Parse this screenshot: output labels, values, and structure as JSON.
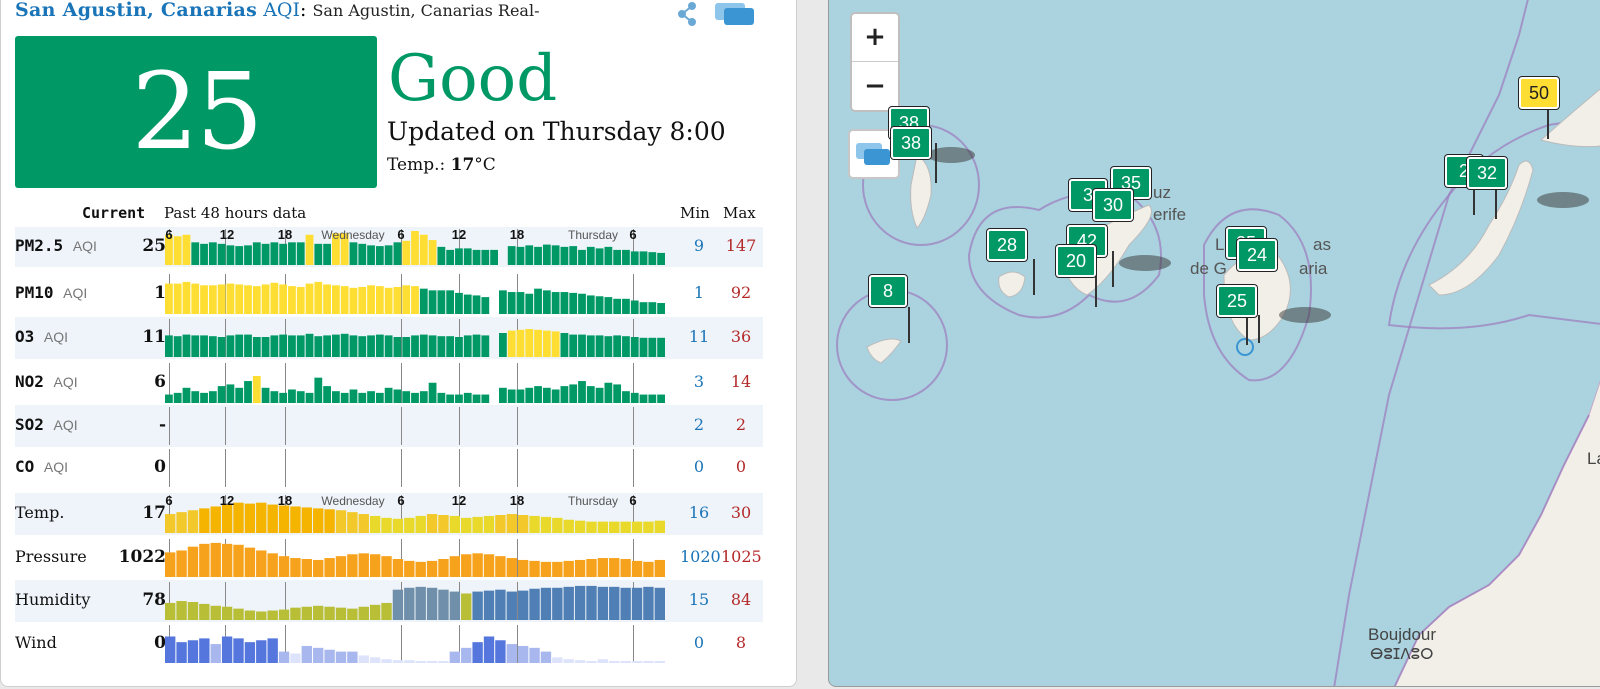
{
  "header": {
    "city": "San Agustin, Canarias",
    "aqi_word": "AQI",
    "colon": ":",
    "subtitle": "San Agustin, Canarias Real-"
  },
  "aqi": {
    "value": "25",
    "level": "Good",
    "updated": "Updated on Thursday 8:00",
    "temp_label": "Temp.:",
    "temp_value": "17",
    "temp_unit": "°C",
    "color": "#009966"
  },
  "table": {
    "current_header": "Current",
    "past_header": "Past 48 hours data",
    "min_header": "Min",
    "max_header": "Max",
    "time_labels": [
      "6",
      "12",
      "18",
      "Wednesday",
      "6",
      "12",
      "18",
      "Thursday",
      "6"
    ],
    "rows": [
      {
        "key": "pm25",
        "label": "PM2.5",
        "unit": "AQI",
        "current": "25",
        "min": "9",
        "max": "147",
        "type": "pollutant",
        "bars": [
          40,
          38,
          40,
          30,
          28,
          30,
          28,
          26,
          25,
          26,
          30,
          28,
          30,
          28,
          30,
          30,
          40,
          28,
          28,
          42,
          42,
          30,
          28,
          26,
          25,
          26,
          30,
          32,
          45,
          40,
          33,
          24,
          20,
          22,
          22,
          20,
          20,
          20,
          null,
          25,
          24,
          26,
          24,
          27,
          26,
          24,
          25,
          20,
          24,
          22,
          24,
          20,
          20,
          18,
          18,
          17,
          16
        ]
      },
      {
        "key": "pm10",
        "label": "PM10",
        "unit": "AQI",
        "current": "1",
        "min": "1",
        "max": "92",
        "type": "pollutant",
        "bars": [
          36,
          36,
          38,
          36,
          34,
          34,
          35,
          36,
          35,
          34,
          33,
          35,
          37,
          35,
          33,
          32,
          36,
          38,
          35,
          34,
          33,
          31,
          32,
          34,
          33,
          31,
          32,
          34,
          33,
          30,
          28,
          28,
          28,
          25,
          23,
          22,
          20,
          null,
          28,
          26,
          26,
          24,
          30,
          28,
          26,
          26,
          25,
          24,
          22,
          21,
          20,
          18,
          18,
          16,
          14,
          14,
          13
        ]
      },
      {
        "key": "o3",
        "label": "O3",
        "unit": "AQI",
        "current": "11",
        "min": "11",
        "max": "36",
        "type": "pollutant",
        "bars": [
          27,
          26,
          28,
          27,
          27,
          26,
          25,
          27,
          28,
          28,
          25,
          25,
          27,
          28,
          27,
          27,
          29,
          26,
          27,
          28,
          29,
          27,
          26,
          27,
          28,
          27,
          25,
          25,
          27,
          28,
          27,
          26,
          26,
          25,
          27,
          28,
          27,
          null,
          30,
          33,
          34,
          35,
          34,
          33,
          32,
          30,
          28,
          28,
          27,
          27,
          26,
          27,
          26,
          25,
          24,
          24,
          24
        ]
      },
      {
        "key": "no2",
        "label": "NO2",
        "unit": "AQI",
        "current": "6",
        "min": "3",
        "max": "14",
        "type": "pollutant",
        "bars": [
          10,
          12,
          18,
          14,
          12,
          14,
          20,
          22,
          18,
          26,
          32,
          18,
          14,
          12,
          16,
          14,
          12,
          30,
          20,
          14,
          12,
          16,
          12,
          14,
          12,
          18,
          16,
          14,
          12,
          14,
          24,
          12,
          10,
          10,
          12,
          10,
          10,
          null,
          18,
          16,
          16,
          18,
          20,
          18,
          16,
          20,
          22,
          26,
          20,
          18,
          24,
          22,
          14,
          12,
          10,
          10,
          10
        ]
      },
      {
        "key": "so2",
        "label": "SO2",
        "unit": "AQI",
        "current": "-",
        "min": "2",
        "max": "2",
        "type": "pollutant",
        "bars": []
      },
      {
        "key": "co",
        "label": "CO",
        "unit": "AQI",
        "current": "0",
        "min": "0",
        "max": "0",
        "type": "pollutant",
        "bars": []
      },
      {
        "key": "temp",
        "label": "Temp.",
        "unit": "",
        "current": "17",
        "min": "16",
        "max": "30",
        "type": "weather",
        "bars": [
          20,
          22,
          24,
          26,
          28,
          30,
          32,
          31,
          32,
          30,
          29,
          28,
          27,
          26,
          25,
          24,
          22,
          20,
          18,
          16,
          15,
          16,
          18,
          20,
          19,
          18,
          16,
          17,
          18,
          19,
          20,
          19,
          18,
          17,
          16,
          14,
          13,
          12,
          12,
          12,
          12,
          12,
          12,
          13
        ]
      },
      {
        "key": "pressure",
        "label": "Pressure",
        "unit": "",
        "current": "1022",
        "min": "1020",
        "max": "1025",
        "type": "weather",
        "bars": [
          26,
          28,
          32,
          35,
          36,
          35,
          34,
          31,
          28,
          25,
          22,
          20,
          19,
          18,
          20,
          22,
          24,
          25,
          24,
          22,
          19,
          17,
          16,
          17,
          19,
          22,
          24,
          25,
          24,
          22,
          20,
          18,
          17,
          16,
          16,
          17,
          18,
          19,
          20,
          20,
          19,
          17,
          16,
          18
        ]
      },
      {
        "key": "humidity",
        "label": "Humidity",
        "unit": "",
        "current": "78",
        "min": "15",
        "max": "84",
        "type": "weather",
        "bars": [
          18,
          20,
          19,
          17,
          15,
          14,
          12,
          10,
          9,
          10,
          11,
          13,
          14,
          15,
          14,
          13,
          12,
          14,
          16,
          18,
          32,
          34,
          35,
          34,
          32,
          30,
          28,
          30,
          31,
          32,
          30,
          31,
          33,
          34,
          34,
          35,
          36,
          36,
          35,
          35,
          34,
          34,
          35,
          34
        ]
      },
      {
        "key": "wind",
        "label": "Wind",
        "unit": "",
        "current": "0",
        "min": "0",
        "max": "8",
        "type": "weather",
        "bars": [
          28,
          22,
          24,
          26,
          20,
          28,
          26,
          22,
          24,
          26,
          12,
          10,
          18,
          16,
          14,
          12,
          12,
          8,
          6,
          4,
          3,
          3,
          2,
          2,
          2,
          12,
          16,
          22,
          28,
          24,
          20,
          18,
          16,
          12,
          6,
          4,
          3,
          2,
          4,
          2,
          2,
          2,
          2,
          2
        ]
      }
    ]
  },
  "map": {
    "markers": [
      {
        "value": "38",
        "color": "green"
      },
      {
        "value": "38",
        "color": "green"
      },
      {
        "value": "8",
        "color": "green"
      },
      {
        "value": "28",
        "color": "green"
      },
      {
        "value": "3",
        "color": "green"
      },
      {
        "value": "35",
        "color": "green"
      },
      {
        "value": "30",
        "color": "green"
      },
      {
        "value": "42",
        "color": "green"
      },
      {
        "value": "20",
        "color": "green"
      },
      {
        "value": "25",
        "color": "green"
      },
      {
        "value": "24",
        "color": "green"
      },
      {
        "value": "25",
        "color": "green"
      },
      {
        "value": "2",
        "color": "green"
      },
      {
        "value": "32",
        "color": "green"
      },
      {
        "value": "50",
        "color": "yellow"
      }
    ],
    "labels": [
      "uz",
      "erife",
      "L",
      "as",
      "de G",
      "aria",
      "Boujdour",
      "ⴱⵓⵊⴷⵓⵔ",
      "La"
    ],
    "zoom_in": "+",
    "zoom_out": "−"
  },
  "colors": {
    "good": "#009966",
    "moderate": "#ffde33",
    "usg": "#ff9933",
    "link": "#1a74b8",
    "min": "#1a74b8",
    "max": "#b42a2a"
  }
}
